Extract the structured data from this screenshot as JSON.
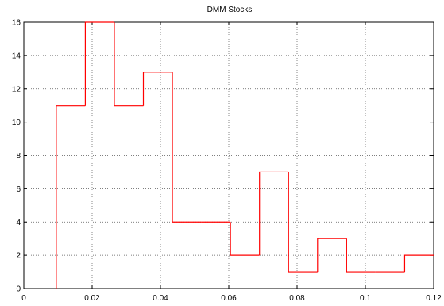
{
  "chart_data": {
    "type": "histogram",
    "title": "DMM Stocks",
    "xlabel": "",
    "ylabel": "",
    "xlim": [
      0,
      0.12
    ],
    "ylim": [
      0,
      16
    ],
    "x_ticks": [
      0,
      0.02,
      0.04,
      0.06,
      0.08,
      0.1,
      0.12
    ],
    "x_tick_labels": [
      "0",
      "0.02",
      "0.04",
      "0.06",
      "0.08",
      "0.1",
      "0.12"
    ],
    "y_ticks": [
      0,
      2,
      4,
      6,
      8,
      10,
      12,
      14,
      16
    ],
    "y_tick_labels": [
      "0",
      "2",
      "4",
      "6",
      "8",
      "10",
      "12",
      "14",
      "16"
    ],
    "grid": true,
    "series": [
      {
        "bins": [
          {
            "x0": 0.0095,
            "x1": 0.018,
            "count": 11
          },
          {
            "x0": 0.018,
            "x1": 0.0265,
            "count": 16
          },
          {
            "x0": 0.0265,
            "x1": 0.035,
            "count": 11
          },
          {
            "x0": 0.035,
            "x1": 0.0435,
            "count": 13
          },
          {
            "x0": 0.0435,
            "x1": 0.052,
            "count": 4
          },
          {
            "x0": 0.052,
            "x1": 0.0605,
            "count": 4
          },
          {
            "x0": 0.0605,
            "x1": 0.069,
            "count": 2
          },
          {
            "x0": 0.069,
            "x1": 0.0775,
            "count": 7
          },
          {
            "x0": 0.0775,
            "x1": 0.086,
            "count": 1
          },
          {
            "x0": 0.086,
            "x1": 0.0945,
            "count": 3
          },
          {
            "x0": 0.0945,
            "x1": 0.103,
            "count": 1
          },
          {
            "x0": 0.103,
            "x1": 0.1115,
            "count": 1
          },
          {
            "x0": 0.1115,
            "x1": 0.12,
            "count": 2
          }
        ]
      }
    ],
    "line_color": "#ff0000",
    "grid_color": "#555555",
    "axis_color": "#000000"
  }
}
